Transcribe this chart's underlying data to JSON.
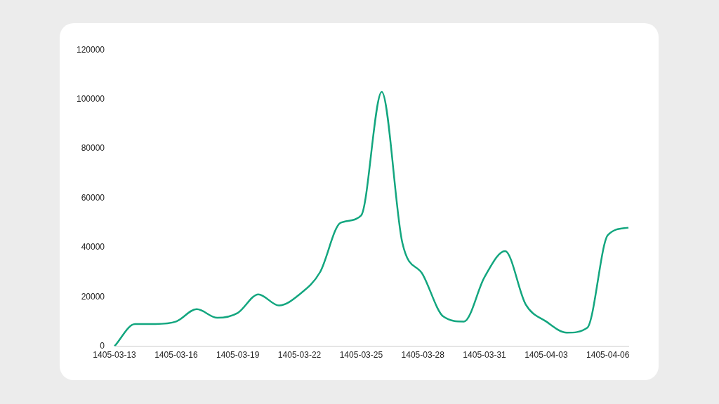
{
  "chart_data": {
    "type": "line",
    "categories": [
      "1405-03-13",
      null,
      null,
      "1405-03-16",
      null,
      null,
      "1405-03-19",
      null,
      null,
      "1405-03-22",
      null,
      null,
      "1405-03-25",
      null,
      null,
      "1405-03-28",
      null,
      null,
      "1405-03-31",
      null,
      null,
      "1405-04-03",
      null,
      null,
      "1405-04-06",
      null
    ],
    "series": [
      {
        "color": "#13a67f",
        "values": [
          0,
          9000,
          9000,
          10000,
          15000,
          11500,
          13500,
          21000,
          16500,
          21000,
          30000,
          50000,
          53000,
          103000,
          42000,
          29000,
          12000,
          10000,
          28000,
          38500,
          17000,
          10000,
          5500,
          7500,
          45000,
          48000
        ]
      }
    ],
    "ylim": [
      0,
      120000
    ],
    "yticks": [
      0,
      20000,
      40000,
      60000,
      80000,
      100000,
      120000
    ],
    "grid": false,
    "legend": false,
    "marker": "none",
    "line_style": "solid"
  }
}
